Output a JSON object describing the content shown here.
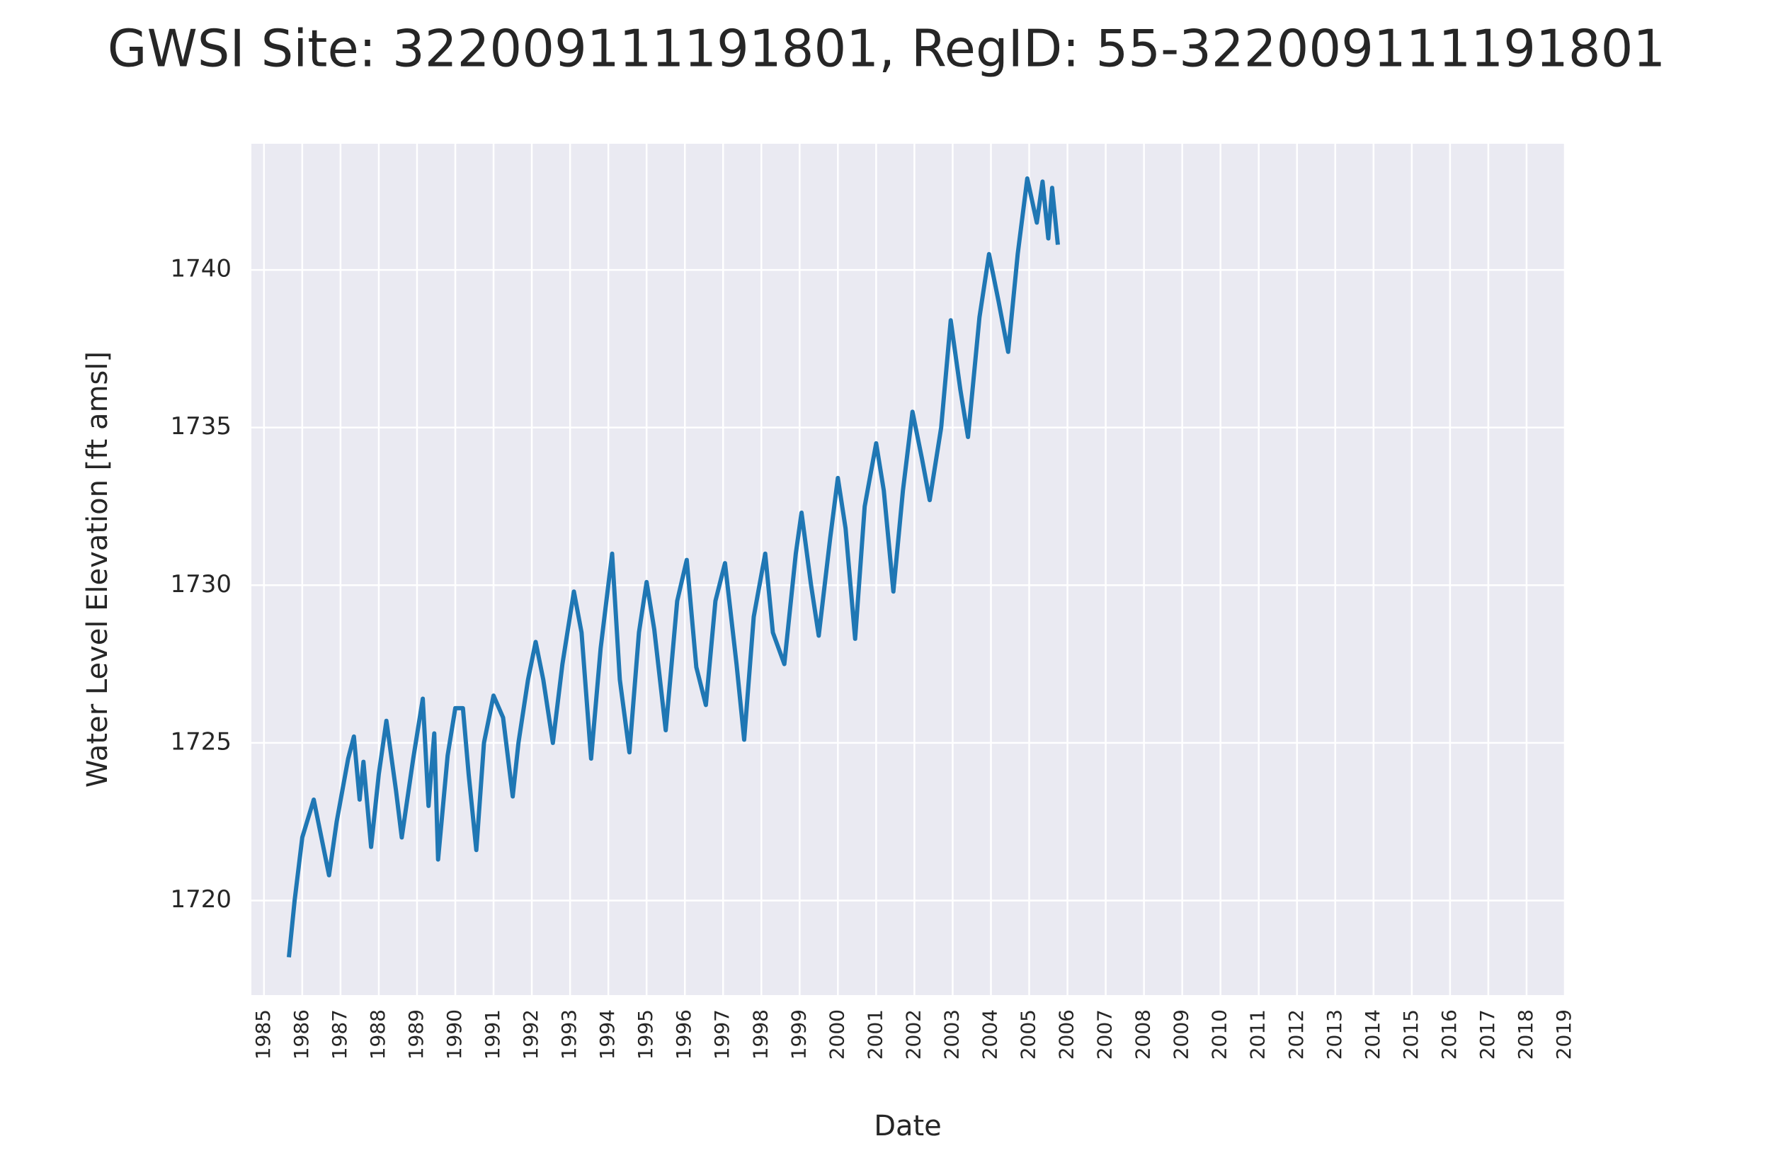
{
  "chart_data": {
    "type": "line",
    "title": "GWSI Site: 322009111191801, RegID: 55-322009111191801",
    "x_label": "Date",
    "y_label": "Water Level Elevation [ft amsl]",
    "xlim": [
      1984.67,
      2019
    ],
    "ylim": [
      1717,
      1744
    ],
    "xticks": [
      1985,
      1986,
      1987,
      1988,
      1989,
      1990,
      1991,
      1992,
      1993,
      1994,
      1995,
      1996,
      1997,
      1998,
      1999,
      2000,
      2001,
      2002,
      2003,
      2004,
      2005,
      2006,
      2007,
      2008,
      2009,
      2010,
      2011,
      2012,
      2013,
      2014,
      2015,
      2016,
      2017,
      2018,
      2019
    ],
    "yticks": [
      1720,
      1725,
      1730,
      1735,
      1740
    ],
    "grid": true,
    "series": [
      {
        "color": "#1f77b4",
        "x": [
          1985.65,
          1985.8,
          1986.0,
          1986.3,
          1986.5,
          1986.7,
          1986.9,
          1987.2,
          1987.35,
          1987.5,
          1987.6,
          1987.8,
          1988.0,
          1988.2,
          1988.45,
          1988.6,
          1988.9,
          1989.15,
          1989.3,
          1989.45,
          1989.55,
          1989.8,
          1990.0,
          1990.2,
          1990.35,
          1990.55,
          1990.75,
          1991.0,
          1991.25,
          1991.5,
          1991.65,
          1991.9,
          1992.1,
          1992.3,
          1992.55,
          1992.8,
          1993.1,
          1993.3,
          1993.55,
          1993.8,
          1994.1,
          1994.3,
          1994.55,
          1994.8,
          1995.0,
          1995.2,
          1995.5,
          1995.8,
          1996.05,
          1996.3,
          1996.55,
          1996.8,
          1997.05,
          1997.35,
          1997.55,
          1997.8,
          1998.1,
          1998.3,
          1998.6,
          1998.9,
          1999.05,
          1999.3,
          1999.5,
          1999.8,
          2000.0,
          2000.2,
          2000.45,
          2000.7,
          2001.0,
          2001.2,
          2001.45,
          2001.7,
          2001.95,
          2002.2,
          2002.4,
          2002.7,
          2002.95,
          2003.2,
          2003.4,
          2003.7,
          2003.95,
          2004.2,
          2004.45,
          2004.7,
          2004.95,
          2005.2,
          2005.35,
          2005.5,
          2005.6,
          2005.75
        ],
        "values": [
          1718.2,
          1720,
          1722,
          1723.2,
          1722,
          1720.8,
          1722.5,
          1724.5,
          1725.2,
          1723.2,
          1724.4,
          1721.7,
          1724,
          1725.7,
          1723.5,
          1722,
          1724.5,
          1726.4,
          1723,
          1725.3,
          1721.3,
          1724.6,
          1726.1,
          1726.1,
          1724,
          1721.6,
          1725,
          1726.5,
          1725.8,
          1723.3,
          1725,
          1727,
          1728.2,
          1727,
          1725,
          1727.5,
          1729.8,
          1728.5,
          1724.5,
          1728,
          1731,
          1727,
          1724.7,
          1728.5,
          1730.1,
          1728.6,
          1725.4,
          1729.5,
          1730.8,
          1727.4,
          1726.2,
          1729.5,
          1730.7,
          1727.5,
          1725.1,
          1729,
          1731,
          1728.5,
          1727.5,
          1731,
          1732.3,
          1730,
          1728.4,
          1731.5,
          1733.4,
          1731.8,
          1728.3,
          1732.5,
          1734.5,
          1733,
          1729.8,
          1733,
          1735.5,
          1734,
          1732.7,
          1735,
          1738.4,
          1736.2,
          1734.7,
          1738.5,
          1740.5,
          1739,
          1737.4,
          1740.5,
          1742.9,
          1741.5,
          1742.8,
          1741,
          1742.6,
          1740.8
        ]
      }
    ]
  }
}
